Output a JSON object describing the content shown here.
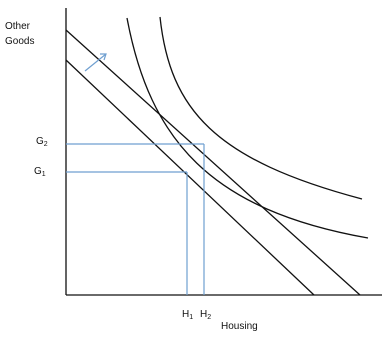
{
  "axes": {
    "y_label_line1": "Other",
    "y_label_line2": "Goods",
    "x_label": "Housing"
  },
  "ticks": {
    "g2": {
      "base": "G",
      "sub": "2"
    },
    "g1": {
      "base": "G",
      "sub": "1"
    },
    "h1": {
      "base": "H",
      "sub": "1"
    },
    "h2": {
      "base": "H",
      "sub": "2"
    }
  },
  "colors": {
    "ink": "#111111",
    "guide": "#6f9fd0",
    "shift_arrow": "#6f9fd0",
    "background": "#ffffff"
  }
}
